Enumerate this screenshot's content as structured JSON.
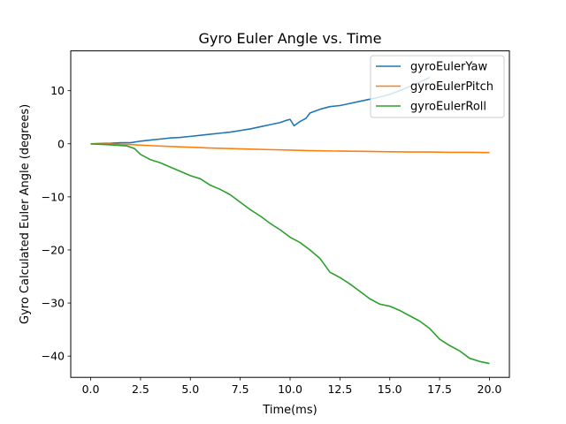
{
  "chart_data": {
    "type": "line",
    "title": "Gyro Euler Angle vs. Time",
    "xlabel": "Time(ms)",
    "ylabel": "Gyro Calculated Euler Angle (degrees)",
    "xlim": [
      -1.0,
      21.0
    ],
    "ylim": [
      -44.0,
      17.5
    ],
    "xticks": [
      0.0,
      2.5,
      5.0,
      7.5,
      10.0,
      12.5,
      15.0,
      17.5,
      20.0
    ],
    "xtick_labels": [
      "0.0",
      "2.5",
      "5.0",
      "7.5",
      "10.0",
      "12.5",
      "15.0",
      "17.5",
      "20.0"
    ],
    "yticks": [
      10,
      0,
      -10,
      -20,
      -30,
      -40
    ],
    "ytick_labels": [
      "10",
      "0",
      "−10",
      "−20",
      "−30",
      "−40"
    ],
    "grid": false,
    "legend_position": "top-right",
    "series": [
      {
        "name": "gyroEulerYaw",
        "color": "#1f77b4",
        "x": [
          0,
          0.5,
          1.0,
          1.5,
          2.0,
          2.5,
          3.0,
          3.5,
          4.0,
          4.5,
          5.0,
          5.5,
          6.0,
          6.5,
          7.0,
          7.5,
          8.0,
          8.5,
          9.0,
          9.5,
          9.8,
          10.0,
          10.2,
          10.5,
          10.8,
          11.0,
          11.5,
          12.0,
          12.5,
          13.0,
          13.5,
          14.0,
          14.5,
          15.0,
          15.5,
          16.0,
          16.5,
          17.0
        ],
        "y": [
          0.0,
          0.05,
          0.1,
          0.2,
          0.2,
          0.5,
          0.7,
          0.9,
          1.1,
          1.2,
          1.4,
          1.6,
          1.8,
          2.0,
          2.2,
          2.5,
          2.8,
          3.2,
          3.6,
          4.0,
          4.4,
          4.6,
          3.4,
          4.2,
          4.8,
          5.8,
          6.5,
          7.0,
          7.2,
          7.6,
          8.0,
          8.4,
          8.8,
          9.3,
          10.0,
          10.8,
          11.6,
          12.5
        ]
      },
      {
        "name": "gyroEulerPitch",
        "color": "#ff7f0e",
        "x": [
          0,
          1.0,
          2.0,
          3.0,
          4.0,
          5.0,
          6.0,
          7.0,
          8.0,
          9.0,
          10.0,
          11.0,
          12.0,
          13.0,
          14.0,
          15.0,
          16.0,
          17.0,
          18.0,
          19.0,
          20.0
        ],
        "y": [
          0.0,
          -0.05,
          -0.15,
          -0.35,
          -0.5,
          -0.65,
          -0.8,
          -0.9,
          -1.0,
          -1.1,
          -1.2,
          -1.3,
          -1.35,
          -1.4,
          -1.45,
          -1.5,
          -1.55,
          -1.55,
          -1.6,
          -1.6,
          -1.65
        ]
      },
      {
        "name": "gyroEulerRoll",
        "color": "#2ca02c",
        "x": [
          0,
          1.0,
          1.8,
          2.2,
          2.5,
          3.0,
          3.5,
          4.0,
          4.5,
          5.0,
          5.5,
          6.0,
          6.5,
          7.0,
          7.5,
          8.0,
          8.5,
          9.0,
          9.5,
          10.0,
          10.5,
          11.0,
          11.5,
          12.0,
          12.5,
          13.0,
          13.5,
          14.0,
          14.5,
          15.0,
          15.5,
          16.0,
          16.5,
          17.0,
          17.5,
          18.0,
          18.5,
          19.0,
          19.5,
          20.0
        ],
        "y": [
          0.0,
          -0.2,
          -0.4,
          -0.9,
          -2.0,
          -3.0,
          -3.6,
          -4.4,
          -5.2,
          -6.0,
          -6.6,
          -7.8,
          -8.6,
          -9.6,
          -11.0,
          -12.4,
          -13.6,
          -15.0,
          -16.2,
          -17.6,
          -18.6,
          -20.0,
          -21.6,
          -24.2,
          -25.2,
          -26.4,
          -27.8,
          -29.2,
          -30.2,
          -30.6,
          -31.4,
          -32.4,
          -33.4,
          -34.8,
          -36.8,
          -38.0,
          -39.0,
          -40.4,
          -41.0,
          -41.4
        ]
      }
    ]
  }
}
